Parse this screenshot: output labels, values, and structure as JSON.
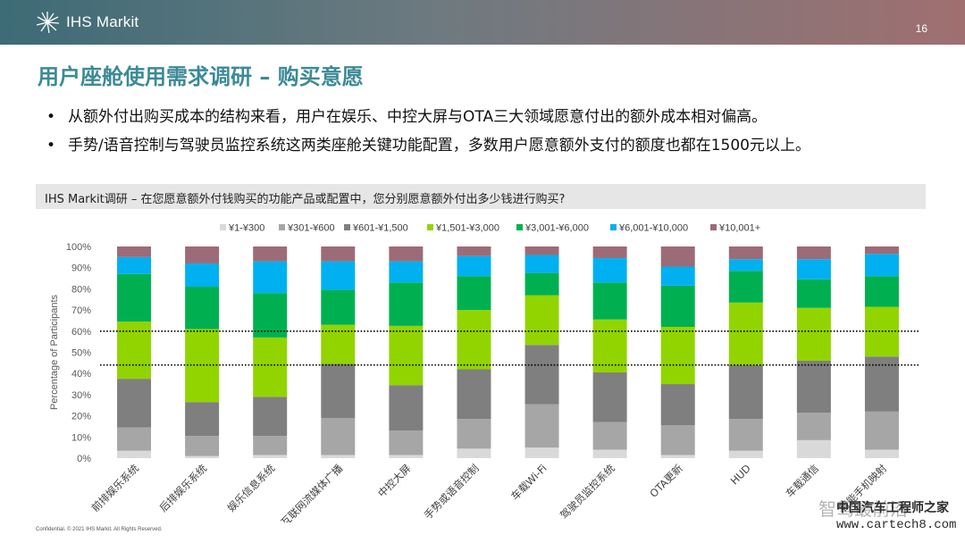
{
  "header": {
    "brand": "IHS Markit",
    "page_number": "16"
  },
  "title": "用户座舱使用需求调研 – 购买意愿",
  "bullets": [
    "从额外付出购买成本的结构来看，用户在娱乐、中控大屏与OTA三大领域愿意付出的额外成本相对偏高。",
    "手势/语音控制与驾驶员监控系统这两类座舱关键功能配置，多数用户愿意额外支付的额度也都在1500元以上。"
  ],
  "question_bar": "IHS Markit调研 – 在您愿意额外付钱购买的功能产品或配置中，您分别愿意额外付出多少钱进行购买?",
  "footer": "Confidential. © 2021 IHS Markit. All Rights Reserved.",
  "watermark": {
    "line1": "中国汽车工程师之家",
    "line2": "www.cartech8.com",
    "overlay": "智驾最前沿"
  },
  "chart_data": {
    "type": "bar",
    "stacked": true,
    "ylabel": "Percentage of Participants",
    "ylim": [
      0,
      100
    ],
    "yticks": [
      "0%",
      "10%",
      "20%",
      "30%",
      "40%",
      "50%",
      "60%",
      "70%",
      "80%",
      "90%",
      "100%"
    ],
    "reference_lines": [
      60,
      44
    ],
    "legend_position": "top",
    "categories": [
      "前排娱乐系统",
      "后排娱乐系统",
      "娱乐信息系统",
      "互联网流媒体广播",
      "中控大屏",
      "手势或语音控制",
      "车载Wi-Fi",
      "驾驶员监控系统",
      "OTA更新",
      "HUD",
      "车载通信",
      "智能手机映射"
    ],
    "series": [
      {
        "name": "¥1-¥300",
        "color": "#d9d9d9",
        "values": [
          3.5,
          1.0,
          1.5,
          1.5,
          1.5,
          4.5,
          5.0,
          4.0,
          1.5,
          3.5,
          8.5,
          4.0
        ]
      },
      {
        "name": "¥301-¥600",
        "color": "#a6a6a6",
        "values": [
          11.0,
          9.5,
          9.0,
          17.5,
          11.5,
          14.0,
          20.5,
          13.0,
          14.0,
          15.0,
          13.0,
          18.0
        ]
      },
      {
        "name": "¥601-¥1,500",
        "color": "#7f7f7f",
        "values": [
          23.0,
          16.0,
          18.5,
          25.5,
          21.5,
          23.5,
          28.0,
          23.5,
          19.5,
          25.5,
          24.5,
          26.0
        ]
      },
      {
        "name": "¥1,501-¥3,000",
        "color": "#92d400",
        "values": [
          27.0,
          34.5,
          28.0,
          18.5,
          28.0,
          28.0,
          23.5,
          25.0,
          27.0,
          29.5,
          25.0,
          23.5
        ]
      },
      {
        "name": "¥3,001-¥6,000",
        "color": "#00b050",
        "values": [
          22.5,
          20.0,
          21.0,
          16.5,
          20.5,
          16.0,
          10.5,
          17.5,
          19.5,
          15.0,
          13.5,
          14.5
        ]
      },
      {
        "name": "¥6,001-¥10,000",
        "color": "#00b0f0",
        "values": [
          8.0,
          11.0,
          15.0,
          13.5,
          10.0,
          9.5,
          8.5,
          11.5,
          9.0,
          5.5,
          9.5,
          10.5
        ]
      },
      {
        "name": "¥10,001+",
        "color": "#9c6b78",
        "values": [
          5.0,
          8.0,
          7.0,
          7.0,
          7.0,
          4.5,
          4.0,
          5.5,
          9.5,
          6.0,
          6.0,
          3.5
        ]
      }
    ]
  }
}
